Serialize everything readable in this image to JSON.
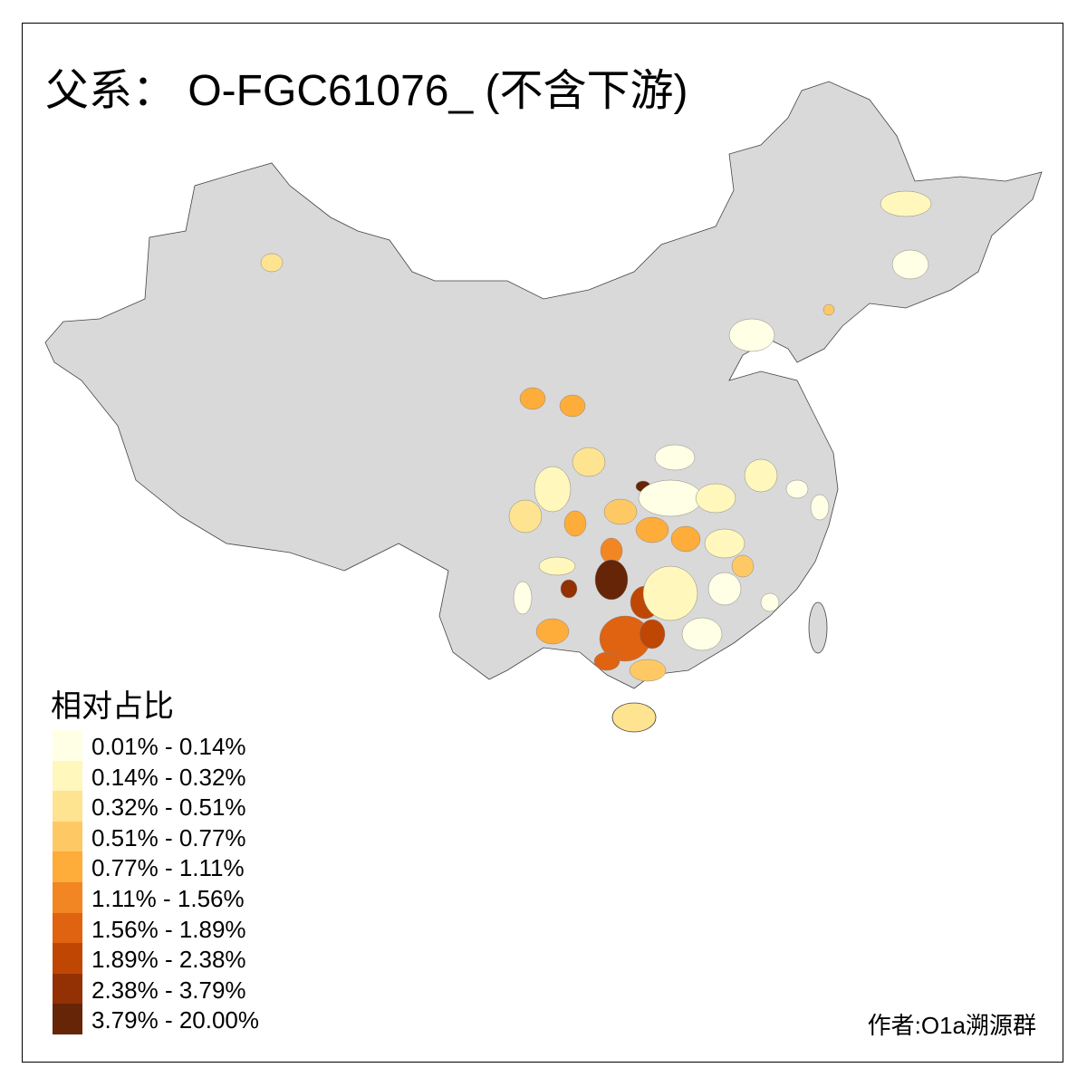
{
  "title": "父系： O-FGC61076_ (不含下游)",
  "legend": {
    "title": "相对占比",
    "items": [
      {
        "label": "0.01% - 0.14%",
        "color": "#ffffe5"
      },
      {
        "label": "0.14% - 0.32%",
        "color": "#fff7bc"
      },
      {
        "label": "0.32% - 0.51%",
        "color": "#fee391"
      },
      {
        "label": "0.51% - 0.77%",
        "color": "#fec965"
      },
      {
        "label": "0.77% - 1.11%",
        "color": "#feac3a"
      },
      {
        "label": "1.11% - 1.56%",
        "color": "#f18623"
      },
      {
        "label": "1.56% - 1.89%",
        "color": "#df6311"
      },
      {
        "label": "1.89% - 2.38%",
        "color": "#bf4703"
      },
      {
        "label": "2.38% - 3.79%",
        "color": "#933104"
      },
      {
        "label": "3.79% - 20.00%",
        "color": "#662506"
      }
    ]
  },
  "no_data_color": "#d9d9d9",
  "author": "作者:O1a溯源群"
}
